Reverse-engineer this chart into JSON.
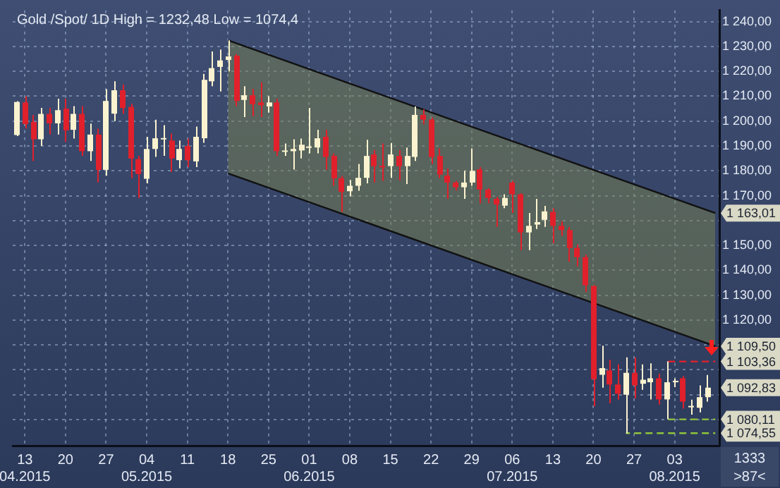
{
  "chart_data": {
    "type": "candlestick",
    "title": "Gold /Spot/ 1D High = 1232,48 Low = 1074,4",
    "categories": [
      null,
      "13\n04.2015",
      null,
      null,
      null,
      null,
      "20",
      null,
      null,
      null,
      null,
      "27",
      null,
      null,
      null,
      null,
      "04\n05.2015",
      null,
      null,
      null,
      null,
      "11",
      null,
      null,
      null,
      null,
      "18",
      null,
      null,
      null,
      null,
      "25",
      null,
      null,
      null,
      null,
      "01\n06.2015",
      null,
      null,
      null,
      null,
      "08",
      null,
      null,
      null,
      null,
      "15",
      null,
      null,
      null,
      null,
      "22",
      null,
      null,
      null,
      null,
      "29",
      null,
      null,
      null,
      null,
      "06\n07.2015",
      null,
      null,
      null,
      null,
      "13",
      null,
      null,
      null,
      null,
      "20",
      null,
      null,
      null,
      null,
      "27",
      null,
      null,
      null,
      null,
      "03\n08.2015",
      null,
      null,
      null,
      null,
      null
    ],
    "ohlc": [
      [
        1194.4,
        1208,
        1194,
        1207.7
      ],
      [
        1207.5,
        1210,
        1197,
        1198.8
      ],
      [
        1199.7,
        1202.5,
        1184,
        1192.7
      ],
      [
        1192.7,
        1205.3,
        1190,
        1202.9
      ],
      [
        1202.9,
        1205.3,
        1194.6,
        1199.1
      ],
      [
        1199.1,
        1209,
        1194.6,
        1204.4
      ],
      [
        1205,
        1209,
        1191.6,
        1196.3
      ],
      [
        1196.5,
        1206,
        1193,
        1202.9
      ],
      [
        1202.9,
        1206,
        1186,
        1187.9
      ],
      [
        1187.9,
        1199,
        1184,
        1194.6
      ],
      [
        1194.6,
        1197,
        1175.3,
        1180.4
      ],
      [
        1180.4,
        1212.8,
        1178,
        1208.1
      ],
      [
        1203,
        1216,
        1200,
        1212.4
      ],
      [
        1212.4,
        1214.7,
        1203,
        1205.3
      ],
      [
        1205.7,
        1207,
        1177,
        1185
      ],
      [
        1184.7,
        1186,
        1169.1,
        1178.7
      ],
      [
        1176.8,
        1193.7,
        1175,
        1188.8
      ],
      [
        1188.8,
        1200.6,
        1185.6,
        1193.1
      ],
      [
        1193,
        1198.4,
        1186,
        1193.2
      ],
      [
        1192.2,
        1195,
        1179.6,
        1185
      ],
      [
        1184.3,
        1192.2,
        1181,
        1188.8
      ],
      [
        1190,
        1193,
        1181.5,
        1184.3
      ],
      [
        1183.8,
        1197.8,
        1181.5,
        1193.7
      ],
      [
        1193.1,
        1219,
        1191.3,
        1216.6
      ],
      [
        1216,
        1228,
        1214,
        1221.3
      ],
      [
        1221.8,
        1228.8,
        1211.9,
        1224.4
      ],
      [
        1224.6,
        1232.48,
        1220,
        1226
      ],
      [
        1226.3,
        1227,
        1206,
        1208.1
      ],
      [
        1208.5,
        1214,
        1201.6,
        1210.4
      ],
      [
        1210.4,
        1213,
        1202,
        1206.8
      ],
      [
        1207.5,
        1215.6,
        1201.6,
        1206.4
      ],
      [
        1205.9,
        1210,
        1203.4,
        1207.5
      ],
      [
        1207.5,
        1209,
        1186,
        1187.9
      ],
      [
        1188,
        1191,
        1186,
        1188.2
      ],
      [
        1187.9,
        1192.7,
        1180.5,
        1188.8
      ],
      [
        1188.2,
        1193,
        1185,
        1190.5
      ],
      [
        1189.7,
        1205.3,
        1187,
        1189.8
      ],
      [
        1189.4,
        1196.5,
        1187,
        1193.1
      ],
      [
        1193.7,
        1196.5,
        1180.4,
        1185.6
      ],
      [
        1186,
        1187,
        1174,
        1177
      ],
      [
        1177,
        1178,
        1163.5,
        1171.6
      ],
      [
        1171.8,
        1176.3,
        1169.7,
        1174
      ],
      [
        1174,
        1182.8,
        1172,
        1177.2
      ],
      [
        1177.2,
        1192.5,
        1175,
        1186
      ],
      [
        1186.6,
        1188.4,
        1175.3,
        1181.9
      ],
      [
        1182,
        1191,
        1176,
        1181.6
      ],
      [
        1181.9,
        1191.2,
        1177.2,
        1186.6
      ],
      [
        1186,
        1188.4,
        1176.2,
        1181.9
      ],
      [
        1181.9,
        1189.4,
        1174.7,
        1186
      ],
      [
        1185.6,
        1205.9,
        1184,
        1202.5
      ],
      [
        1202.5,
        1204.7,
        1198.75,
        1200.6
      ],
      [
        1200.6,
        1201.5,
        1182.8,
        1185.6
      ],
      [
        1186,
        1189,
        1177,
        1178.5
      ],
      [
        1178.1,
        1180.9,
        1168.75,
        1175.3
      ],
      [
        1175.3,
        1176,
        1172.1,
        1173.4
      ],
      [
        1173.4,
        1180,
        1168.75,
        1175.3
      ],
      [
        1175.3,
        1189,
        1174,
        1180
      ],
      [
        1180.6,
        1181.5,
        1166.9,
        1172.5
      ],
      [
        1172.5,
        1173,
        1167,
        1169.1
      ],
      [
        1168.75,
        1169.5,
        1157.5,
        1166.5
      ],
      [
        1166,
        1170.6,
        1165,
        1169.1
      ],
      [
        1175.3,
        1176,
        1163.1,
        1170.6
      ],
      [
        1170.6,
        1171,
        1148.1,
        1155.25
      ],
      [
        1155.25,
        1163.1,
        1148.1,
        1157.9
      ],
      [
        1158.4,
        1168.75,
        1156.6,
        1159.4
      ],
      [
        1160.3,
        1165.9,
        1157.5,
        1163.7
      ],
      [
        1163.5,
        1165,
        1150.9,
        1157.9
      ],
      [
        1157.9,
        1159.75,
        1153.75,
        1156.2
      ],
      [
        1156.2,
        1157.5,
        1143.4,
        1149
      ],
      [
        1149,
        1150.4,
        1141.6,
        1145.3
      ],
      [
        1145.3,
        1146.25,
        1131.25,
        1134
      ],
      [
        1133.7,
        1134,
        1085.3,
        1096.2
      ],
      [
        1098,
        1109.7,
        1092.8,
        1100.7
      ],
      [
        1099.75,
        1104.1,
        1086.6,
        1094.1
      ],
      [
        1094.1,
        1102.2,
        1088,
        1090.4
      ],
      [
        1090,
        1105,
        1074.4,
        1098.8
      ],
      [
        1098.8,
        1105,
        1088.5,
        1093.75
      ],
      [
        1094.4,
        1102.2,
        1092,
        1096
      ],
      [
        1095,
        1102.6,
        1088.1,
        1096.6
      ],
      [
        1096.6,
        1098.4,
        1086,
        1088.1
      ],
      [
        1088.1,
        1103.36,
        1080.11,
        1095
      ],
      [
        1095,
        1096.5,
        1093,
        1095.6
      ],
      [
        1096.6,
        1097.5,
        1084.4,
        1087.2
      ],
      [
        1085.3,
        1088,
        1082,
        1085.5
      ],
      [
        1084.75,
        1093.75,
        1082.9,
        1089
      ],
      [
        1089,
        1097.9,
        1087.2,
        1092.83
      ],
      null
    ],
    "colors": [
      "#fbf3cf",
      "#e0202b",
      "#e0202b",
      "#fbf3cf",
      "#e0202b",
      "#fbf3cf",
      "#e0202b",
      "#fbf3cf",
      "#e0202b",
      "#fbf3cf",
      "#e0202b",
      "#fbf3cf",
      "#fbf3cf",
      "#e0202b",
      "#e0202b",
      "#e0202b",
      "#fbf3cf",
      "#fbf3cf",
      "#fbf3cf",
      "#e0202b",
      "#fbf3cf",
      "#e0202b",
      "#fbf3cf",
      "#fbf3cf",
      "#fbf3cf",
      "#fbf3cf",
      "#fbf3cf",
      "#e0202b",
      "#fbf3cf",
      "#e0202b",
      "#e0202b",
      "#fbf3cf",
      "#e0202b",
      "#fbf3cf",
      "#fbf3cf",
      "#fbf3cf",
      "#fbf3cf",
      "#fbf3cf",
      "#e0202b",
      "#e0202b",
      "#e0202b",
      "#fbf3cf",
      "#fbf3cf",
      "#fbf3cf",
      "#e0202b",
      "#e0202b",
      "#fbf3cf",
      "#e0202b",
      "#fbf3cf",
      "#fbf3cf",
      "#e0202b",
      "#e0202b",
      "#e0202b",
      "#e0202b",
      "#e0202b",
      "#fbf3cf",
      "#fbf3cf",
      "#e0202b",
      "#e0202b",
      "#e0202b",
      "#fbf3cf",
      "#e0202b",
      "#e0202b",
      "#fbf3cf",
      "#fbf3cf",
      "#fbf3cf",
      "#e0202b",
      "#e0202b",
      "#e0202b",
      "#e0202b",
      "#e0202b",
      "#e0202b",
      "#fbf3cf",
      "#e0202b",
      "#e0202b",
      "#fbf3cf",
      "#e0202b",
      "#fbf3cf",
      "#fbf3cf",
      "#e0202b",
      "#fbf3cf",
      "#fbf3cf",
      "#e0202b",
      "#fbf3cf",
      "#fbf3cf",
      "#fbf3cf",
      null
    ],
    "series": [
      {
        "type": "line",
        "color": "#111111",
        "values": [
          null,
          null,
          null,
          null,
          null,
          null,
          null,
          null,
          null,
          null,
          null,
          null,
          null,
          null,
          null,
          null,
          null,
          null,
          null,
          null,
          null,
          null,
          null,
          null,
          null,
          null,
          1232.48,
          null,
          null,
          null,
          null,
          null,
          null,
          null,
          null,
          null,
          null,
          null,
          null,
          null,
          null,
          null,
          null,
          null,
          null,
          null,
          null,
          null,
          null,
          null,
          null,
          null,
          null,
          null,
          null,
          null,
          null,
          null,
          null,
          null,
          null,
          null,
          null,
          null,
          null,
          null,
          null,
          null,
          null,
          null,
          null,
          null,
          null,
          null,
          null,
          null,
          null,
          null,
          null,
          null,
          null,
          null,
          null,
          null,
          null,
          null,
          1163.01
        ]
      },
      {
        "type": "line",
        "color": "#111111",
        "values": [
          null,
          null,
          null,
          null,
          null,
          null,
          null,
          null,
          null,
          null,
          null,
          null,
          null,
          null,
          null,
          null,
          null,
          null,
          null,
          null,
          null,
          null,
          null,
          null,
          null,
          null,
          1179,
          null,
          null,
          null,
          null,
          null,
          null,
          null,
          null,
          null,
          null,
          null,
          null,
          null,
          null,
          null,
          null,
          null,
          null,
          null,
          null,
          null,
          null,
          null,
          null,
          null,
          null,
          null,
          null,
          null,
          null,
          null,
          null,
          null,
          null,
          null,
          null,
          null,
          null,
          null,
          null,
          null,
          null,
          null,
          null,
          null,
          null,
          null,
          null,
          null,
          null,
          null,
          null,
          null,
          null,
          null,
          null,
          null,
          null,
          null,
          1109.5
        ],
        "lower": [
          null,
          null,
          null,
          null,
          null,
          null,
          null,
          null,
          null,
          null,
          null,
          null,
          null,
          null,
          null,
          null,
          null,
          null,
          null,
          null,
          null,
          null,
          null,
          null,
          null,
          null,
          1179,
          null,
          null,
          null,
          null,
          null,
          null,
          null,
          null,
          null,
          null,
          null,
          null,
          null,
          null,
          null,
          null,
          null,
          null,
          null,
          null,
          null,
          null,
          null,
          null,
          null,
          null,
          null,
          null,
          null,
          null,
          null,
          null,
          null,
          null,
          null,
          null,
          null,
          null,
          null,
          null,
          null,
          null,
          null,
          null,
          null,
          null,
          null,
          null,
          null,
          null,
          null,
          null,
          null,
          null,
          null,
          null,
          null,
          null,
          null,
          1109.5
        ],
        "upper": [
          null,
          null,
          null,
          null,
          null,
          null,
          null,
          null,
          null,
          null,
          null,
          null,
          null,
          null,
          null,
          null,
          null,
          null,
          null,
          null,
          null,
          null,
          null,
          null,
          null,
          null,
          1232.48,
          null,
          null,
          null,
          null,
          null,
          null,
          null,
          null,
          null,
          null,
          null,
          null,
          null,
          null,
          null,
          null,
          null,
          null,
          null,
          null,
          null,
          null,
          null,
          null,
          null,
          null,
          null,
          null,
          null,
          null,
          null,
          null,
          null,
          null,
          null,
          null,
          null,
          null,
          null,
          null,
          null,
          null,
          null,
          null,
          null,
          null,
          null,
          null,
          null,
          null,
          null,
          null,
          null,
          null,
          null,
          null,
          null,
          null,
          null,
          1163.01
        ]
      },
      {
        "type": "line",
        "color": "#e8202a",
        "line_style": "dashed",
        "values": [
          null,
          null,
          null,
          null,
          null,
          null,
          null,
          null,
          null,
          null,
          null,
          null,
          null,
          null,
          null,
          null,
          null,
          null,
          null,
          null,
          null,
          null,
          null,
          null,
          null,
          null,
          null,
          null,
          null,
          null,
          null,
          null,
          null,
          null,
          null,
          null,
          null,
          null,
          null,
          null,
          null,
          null,
          null,
          null,
          null,
          null,
          null,
          null,
          null,
          null,
          null,
          null,
          null,
          null,
          null,
          null,
          null,
          null,
          null,
          null,
          null,
          null,
          null,
          null,
          null,
          null,
          null,
          null,
          null,
          null,
          null,
          null,
          null,
          null,
          null,
          null,
          null,
          null,
          null,
          null,
          1103.36,
          1103.36,
          1103.36,
          1103.36,
          1103.36,
          1103.36,
          1103.36
        ]
      },
      {
        "type": "line",
        "color": "#8fc43a",
        "line_style": "dashed",
        "values": [
          null,
          null,
          null,
          null,
          null,
          null,
          null,
          null,
          null,
          null,
          null,
          null,
          null,
          null,
          null,
          null,
          null,
          null,
          null,
          null,
          null,
          null,
          null,
          null,
          null,
          null,
          null,
          null,
          null,
          null,
          null,
          null,
          null,
          null,
          null,
          null,
          null,
          null,
          null,
          null,
          null,
          null,
          null,
          null,
          null,
          null,
          null,
          null,
          null,
          null,
          null,
          null,
          null,
          null,
          null,
          null,
          null,
          null,
          null,
          null,
          null,
          null,
          null,
          null,
          null,
          null,
          null,
          null,
          null,
          null,
          null,
          null,
          null,
          null,
          null,
          null,
          null,
          null,
          null,
          null,
          1080.11,
          1080.11,
          1080.11,
          1080.11,
          1080.11,
          1080.11,
          1080.11
        ]
      },
      {
        "type": "line",
        "color": "#8fc43a",
        "line_style": "dashed",
        "values": [
          null,
          null,
          null,
          null,
          null,
          null,
          null,
          null,
          null,
          null,
          null,
          null,
          null,
          null,
          null,
          null,
          null,
          null,
          null,
          null,
          null,
          null,
          null,
          null,
          null,
          null,
          null,
          null,
          null,
          null,
          null,
          null,
          null,
          null,
          null,
          null,
          null,
          null,
          null,
          null,
          null,
          null,
          null,
          null,
          null,
          null,
          null,
          null,
          null,
          null,
          null,
          null,
          null,
          null,
          null,
          null,
          null,
          null,
          null,
          null,
          null,
          null,
          null,
          null,
          null,
          null,
          null,
          null,
          null,
          null,
          null,
          null,
          null,
          null,
          null,
          1074.55,
          1074.55,
          1074.55,
          1074.55,
          1074.55,
          1074.55,
          1074.55,
          1074.55,
          1074.55,
          1074.55,
          1074.55,
          1074.55
        ]
      }
    ],
    "ylim": [
      1069.5,
      1244.5
    ],
    "yticks": [
      {
        "value": 1080,
        "label": null
      },
      {
        "value": 1090,
        "label": null
      },
      {
        "value": 1100,
        "label": null
      },
      {
        "value": 1110,
        "label": null
      },
      {
        "value": 1120,
        "label": "1 120,00"
      },
      {
        "value": 1130,
        "label": "1 130,00"
      },
      {
        "value": 1140,
        "label": "1 140,00"
      },
      {
        "value": 1150,
        "label": "1 150,00"
      },
      {
        "value": 1160,
        "label": null
      },
      {
        "value": 1170,
        "label": "1 170,00"
      },
      {
        "value": 1180,
        "label": "1 180,00"
      },
      {
        "value": 1190,
        "label": "1 190,00"
      },
      {
        "value": 1200,
        "label": "1 200,00"
      },
      {
        "value": 1210,
        "label": "1 210,00"
      },
      {
        "value": 1220,
        "label": "1 220,00"
      },
      {
        "value": 1230,
        "label": "1 230,00"
      },
      {
        "value": 1240,
        "label": "1 240,00"
      },
      {
        "value": 1163.01,
        "label": "1 163,01"
      },
      {
        "value": 1109.5,
        "label": "1 109,50"
      },
      {
        "value": 1103.36,
        "label": "1 103,36"
      },
      {
        "value": 1092.83,
        "label": "1 092,83"
      },
      {
        "value": 1080.11,
        "label": "1 080,11"
      },
      {
        "value": 1074.55,
        "label": "1 074,55"
      }
    ],
    "annotations": [
      "1333",
      ">87<"
    ],
    "grid": true,
    "marker": "none"
  }
}
